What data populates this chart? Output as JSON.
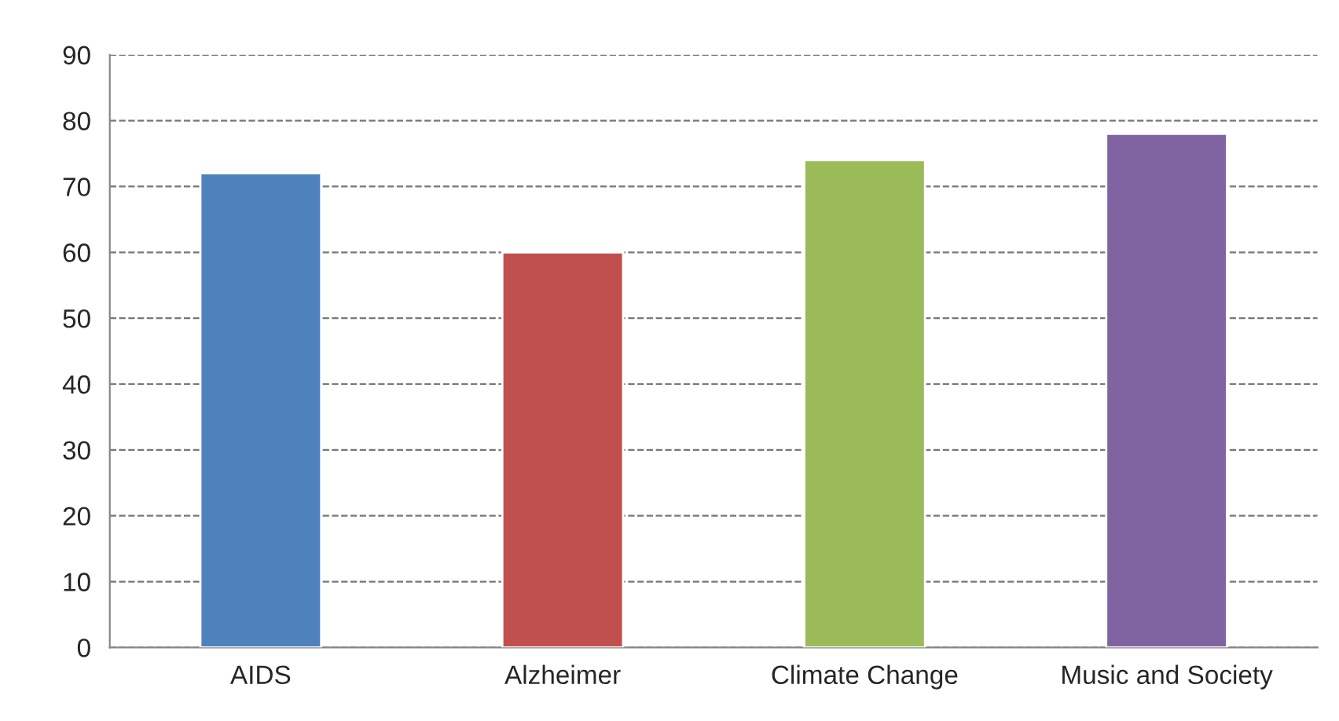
{
  "chart_data": {
    "type": "bar",
    "categories": [
      "AIDS",
      "Alzheimer",
      "Climate Change",
      "Music and Society"
    ],
    "values": [
      72,
      60,
      74,
      78
    ],
    "colors": [
      "#4f81bd",
      "#c0504d",
      "#9bbb59",
      "#8064a2"
    ],
    "ylim": [
      0,
      90
    ],
    "yticks": [
      0,
      10,
      20,
      30,
      40,
      50,
      60,
      70,
      80,
      90
    ],
    "grid": "y",
    "legend": false
  }
}
